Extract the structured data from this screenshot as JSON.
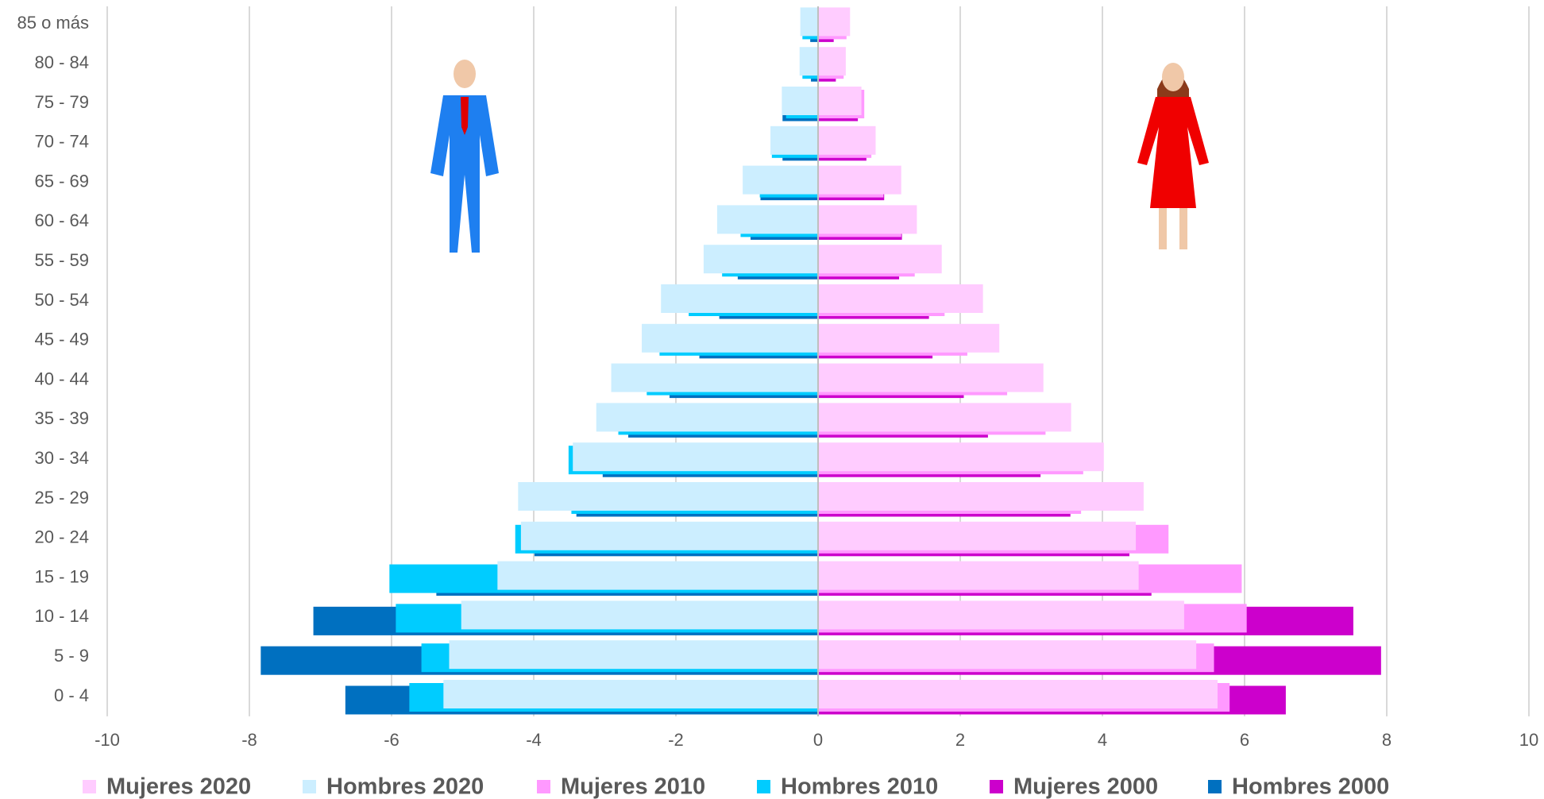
{
  "chart_data": {
    "type": "pyramid",
    "categories": [
      "0 -  4",
      "5  -  9",
      "10 - 14",
      "15 - 19",
      "20 - 24",
      "25 - 29",
      "30 - 34",
      "35 - 39",
      "40 - 44",
      "45 - 49",
      "50 - 54",
      "55 - 59",
      "60 - 64",
      "65 - 69",
      "70 - 74",
      "75 - 79",
      "80 - 84",
      "85 o más"
    ],
    "series": [
      {
        "name": "Mujeres 2020",
        "color": "#ffccff",
        "values": [
          5.62,
          5.32,
          5.15,
          4.51,
          4.47,
          4.58,
          4.02,
          3.56,
          3.17,
          2.55,
          2.32,
          1.74,
          1.39,
          1.17,
          0.81,
          0.61,
          0.39,
          0.45
        ]
      },
      {
        "name": "Hombres 2020",
        "color": "#cceeff",
        "values": [
          -5.27,
          -5.19,
          -5.02,
          -4.51,
          -4.18,
          -4.22,
          -3.45,
          -3.12,
          -2.91,
          -2.48,
          -2.21,
          -1.61,
          -1.42,
          -1.06,
          -0.67,
          -0.51,
          -0.26,
          -0.25
        ]
      },
      {
        "name": "Mujeres 2010",
        "color": "#ff99ff",
        "values": [
          5.79,
          5.57,
          6.03,
          5.96,
          4.93,
          3.7,
          3.73,
          3.2,
          2.66,
          2.1,
          1.78,
          1.36,
          1.17,
          0.92,
          0.75,
          0.65,
          0.36,
          0.4
        ]
      },
      {
        "name": "Hombres 2010",
        "color": "#00ccff",
        "values": [
          -5.75,
          -5.58,
          -5.94,
          -6.03,
          -4.26,
          -3.47,
          -3.51,
          -2.81,
          -2.41,
          -2.23,
          -1.82,
          -1.35,
          -1.09,
          -0.82,
          -0.65,
          -0.45,
          -0.22,
          -0.22
        ]
      },
      {
        "name": "Mujeres 2000",
        "color": "#cc00cc",
        "values": [
          6.58,
          7.92,
          7.53,
          4.69,
          4.38,
          3.55,
          3.13,
          2.39,
          2.05,
          1.61,
          1.56,
          1.14,
          1.18,
          0.93,
          0.68,
          0.56,
          0.25,
          0.22
        ]
      },
      {
        "name": "Hombres 2000",
        "color": "#0070c0",
        "values": [
          -6.65,
          -7.84,
          -7.1,
          -5.37,
          -3.99,
          -3.4,
          -3.03,
          -2.67,
          -2.09,
          -1.67,
          -1.39,
          -1.13,
          -0.95,
          -0.81,
          -0.5,
          -0.5,
          -0.1,
          -0.11
        ]
      }
    ],
    "xlim": [
      -10,
      10
    ],
    "xticks": [
      -10,
      -8,
      -6,
      -4,
      -2,
      0,
      2,
      4,
      6,
      8,
      10
    ],
    "grid": true
  }
}
